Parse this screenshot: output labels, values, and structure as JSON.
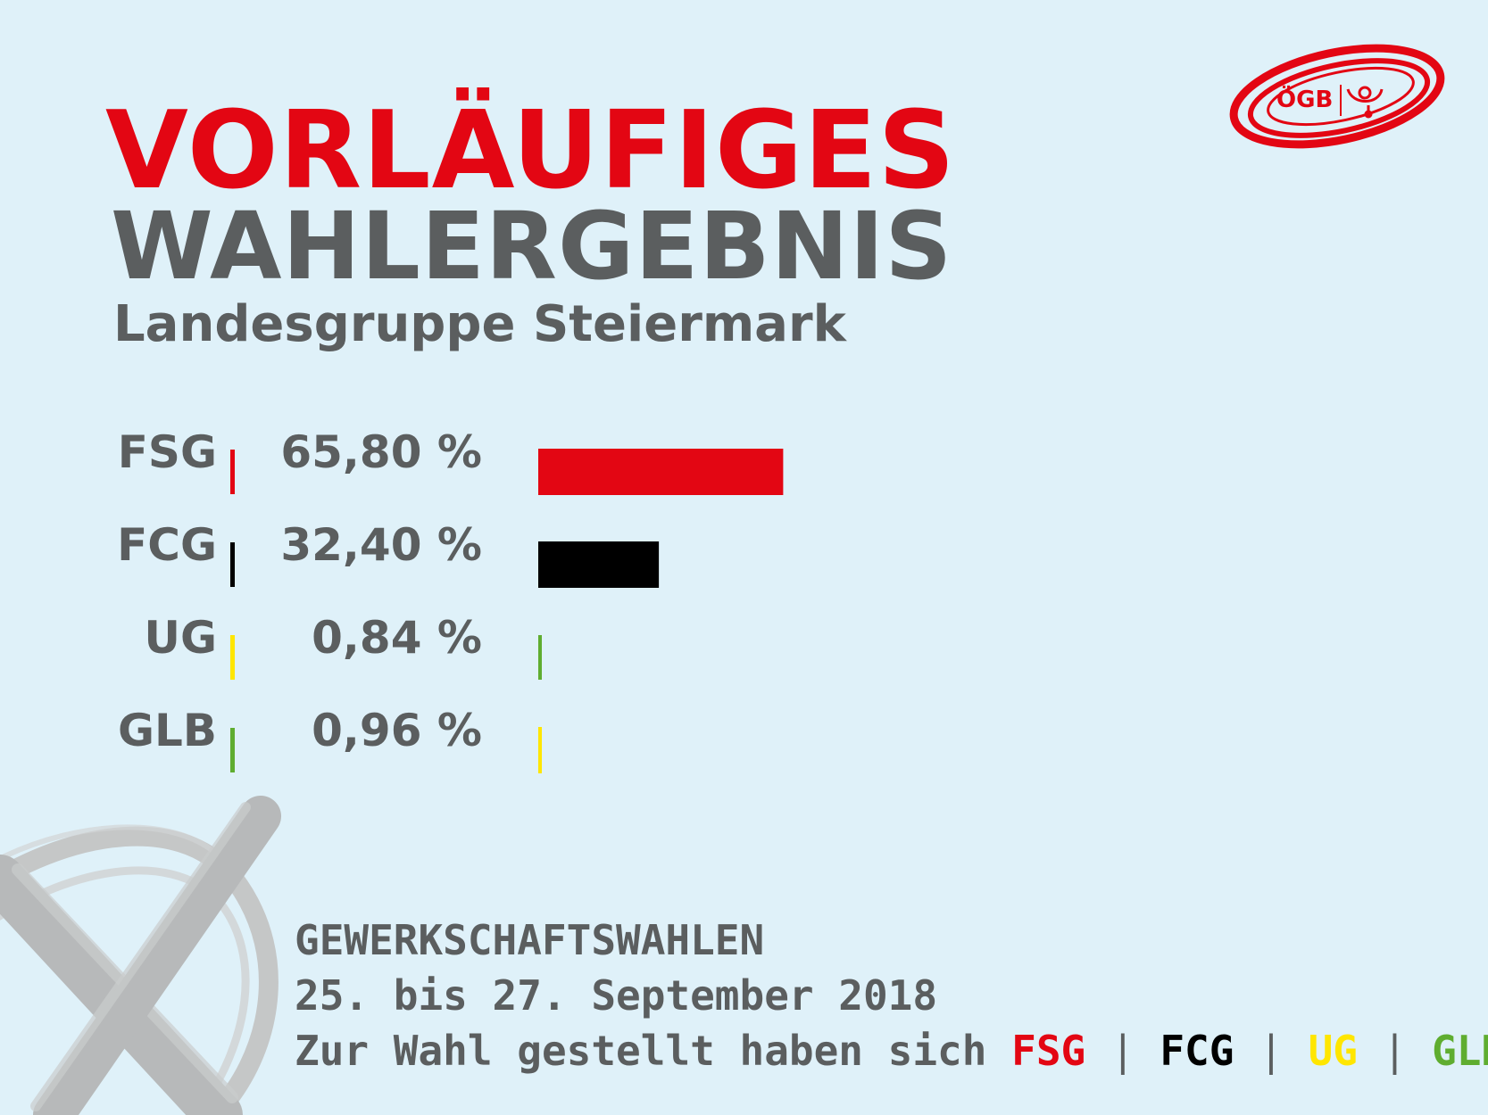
{
  "headline": {
    "line1": "VORLÄUFIGES",
    "line2": "WAHLERGEBNIS",
    "subtitle": "Landesgruppe Steiermark"
  },
  "logo": {
    "text": "ÖGB",
    "icon": "post-horn-icon",
    "color": "#e30613"
  },
  "colors": {
    "red": "#e30613",
    "black": "#000000",
    "yellow": "#ffe600",
    "green": "#5fad30",
    "grey_text": "#5b5e5f",
    "background": "#dff1f9",
    "cross": "#c4c5c5"
  },
  "chart_data": {
    "type": "bar",
    "orientation": "horizontal",
    "categories": [
      "FSG",
      "FCG",
      "UG",
      "GLB"
    ],
    "values": [
      65.8,
      32.4,
      0.84,
      0.96
    ],
    "value_labels": [
      "65,80 %",
      "32,40 %",
      "0,84 %",
      "0,96 %"
    ],
    "separator_colors": [
      "#e30613",
      "#000000",
      "#ffe600",
      "#5fad30"
    ],
    "bar_colors": [
      "#e30613",
      "#000000",
      "#5fad30",
      "#ffe600"
    ],
    "xlim": [
      0,
      100
    ],
    "grid": false,
    "title": "",
    "xlabel": "",
    "ylabel": ""
  },
  "footer": {
    "line1": "GEWERKSCHAFTSWAHLEN",
    "line2": "25. bis 27. September 2018",
    "line3_prefix": "Zur Wahl gestellt haben sich",
    "parties": [
      {
        "label": "FSG",
        "color": "#e30613"
      },
      {
        "label": "FCG",
        "color": "#000000"
      },
      {
        "label": "UG",
        "color": "#ffe600"
      },
      {
        "label": "GLB",
        "color": "#5fad30"
      }
    ],
    "separator": "|"
  }
}
